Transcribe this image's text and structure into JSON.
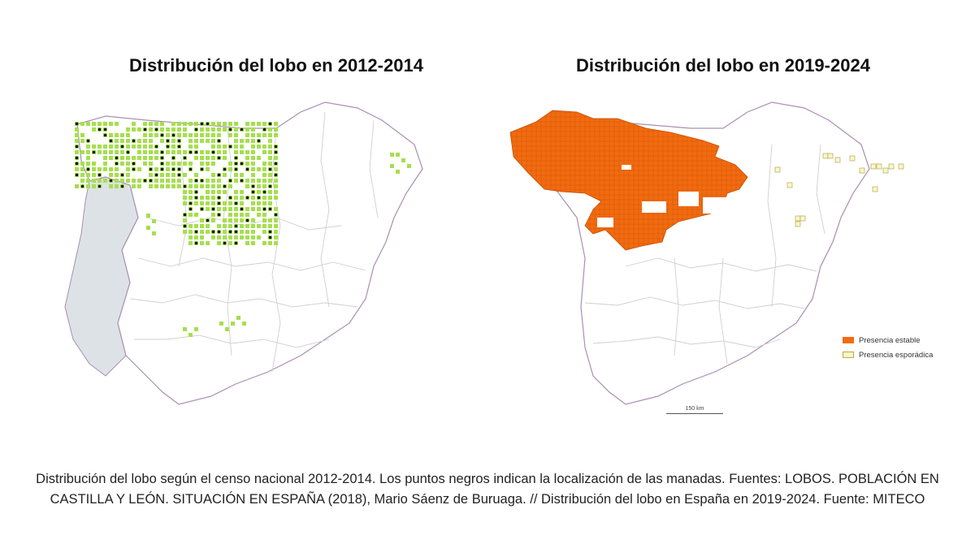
{
  "left_panel": {
    "title": "Distribución del lobo en 2012-2014",
    "colors": {
      "presence": "#a6df4f",
      "packs": "#111111",
      "portugal": "#dde2e6",
      "border": "#a98fb2",
      "province": "#cfcfcf"
    }
  },
  "right_panel": {
    "title": "Distribución del lobo en 2019-2024",
    "colors": {
      "stable": "#f26b0f",
      "sporadic": "#fbf6c5",
      "border": "#a98fb2",
      "province": "#cfcfcf"
    },
    "legend": [
      {
        "label": "Presencia estable",
        "color": "#f26b0f"
      },
      {
        "label": "Presencia esporádica",
        "color": "#fbf6c5"
      }
    ],
    "scale_label": "150 km"
  },
  "caption": "Distribución del lobo según el censo nacional 2012-2014. Los puntos negros indican la localización de las manadas. Fuentes: LOBOS. POBLACIÓN EN CASTILLA Y LEÓN. SITUACIÓN EN ESPAÑA (2018), Mario Sáenz de Buruaga. // Distribución del lobo en España en 2019-2024. Fuente: MITECO"
}
